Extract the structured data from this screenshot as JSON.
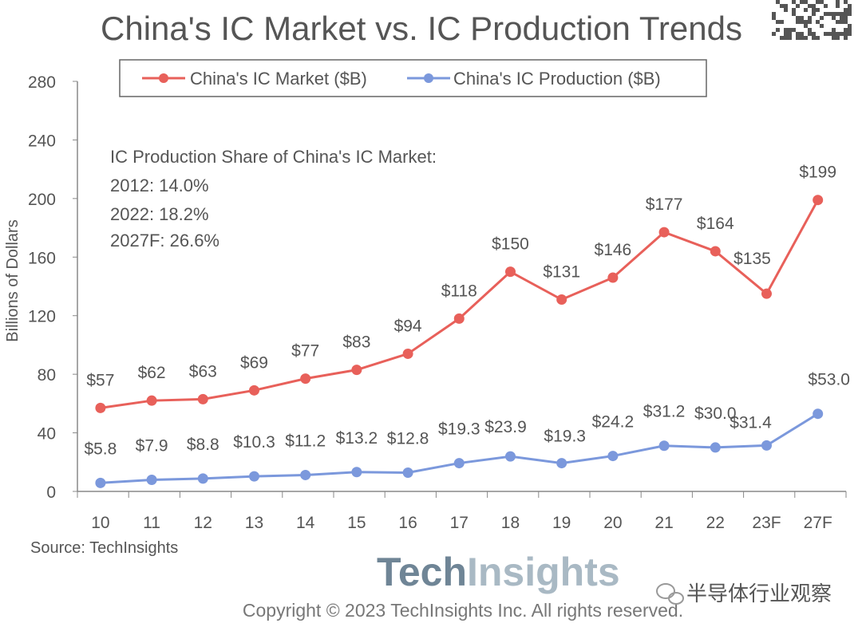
{
  "chart_data": {
    "type": "line",
    "title": "China's IC Market vs. IC Production Trends",
    "ylabel": "Billions of Dollars",
    "xlabel": "",
    "ylim": [
      0,
      280
    ],
    "yticks": [
      0,
      40,
      80,
      120,
      160,
      200,
      240,
      280
    ],
    "categories": [
      "10",
      "11",
      "12",
      "13",
      "14",
      "15",
      "16",
      "17",
      "18",
      "19",
      "20",
      "21",
      "22",
      "23F",
      "27F"
    ],
    "legend_position": "top",
    "series": [
      {
        "name": "China's IC Market ($B)",
        "color": "#e8605a",
        "values": [
          57,
          62,
          63,
          69,
          77,
          83,
          94,
          118,
          150,
          131,
          146,
          177,
          164,
          135,
          199
        ],
        "labels": [
          "$57",
          "$62",
          "$63",
          "$69",
          "$77",
          "$83",
          "$94",
          "$118",
          "$150",
          "$131",
          "$146",
          "$177",
          "$164",
          "$135",
          "$199"
        ]
      },
      {
        "name": "China's IC Production ($B)",
        "color": "#7b98dc",
        "values": [
          5.8,
          7.9,
          8.8,
          10.3,
          11.2,
          13.2,
          12.8,
          19.3,
          23.9,
          19.3,
          24.2,
          31.2,
          30.0,
          31.4,
          53.0
        ],
        "labels": [
          "$5.8",
          "$7.9",
          "$8.8",
          "$10.3",
          "$11.2",
          "$13.2",
          "$12.8",
          "$19.3",
          "$23.9",
          "$19.3",
          "$24.2",
          "$31.2",
          "$30.0",
          "$31.4",
          "$53.0"
        ]
      }
    ],
    "annotation": {
      "heading": "IC Production Share of China's IC Market:",
      "lines": [
        "2012: 14.0%",
        "2022: 18.2%",
        "2027F: 26.6%"
      ]
    },
    "source": "Source: TechInsights"
  },
  "logo": {
    "part1": "Tech",
    "part2": "Insights"
  },
  "copyright": "Copyright © 2023 TechInsights Inc.  All rights reserved.",
  "watermark": "半导体行业观察"
}
